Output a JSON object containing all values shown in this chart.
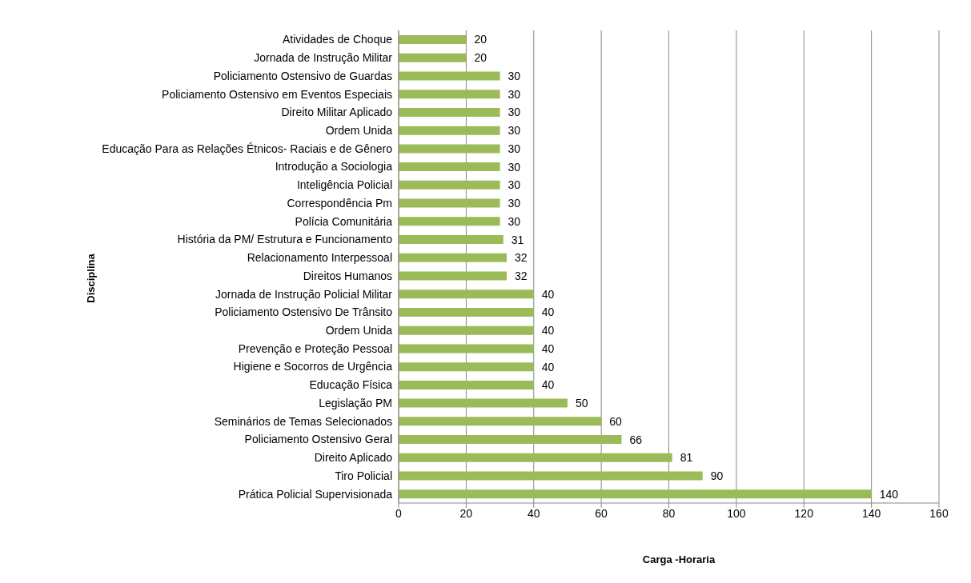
{
  "chart_data": {
    "type": "bar",
    "orientation": "horizontal",
    "xlabel": "Carga -Horaria",
    "ylabel": "Disciplina",
    "categories": [
      "Atividades de Choque",
      "Jornada de Instrução Militar",
      "Policiamento Ostensivo de Guardas",
      "Policiamento Ostensivo em Eventos Especiais",
      "Direito Militar Aplicado",
      "Ordem Unida",
      "Educação Para as Relações Étnicos- Raciais e de Gênero",
      "Introdução a Sociologia",
      "Inteligência Policial",
      "Correspondência Pm",
      "Polícia Comunitária",
      "História da PM/ Estrutura e Funcionamento",
      "Relacionamento Interpessoal",
      "Direitos Humanos",
      "Jornada de Instrução Policial Militar",
      "Policiamento Ostensivo De Trânsito",
      "Ordem Unida",
      "Prevenção e Proteção Pessoal",
      "Higiene e Socorros de Urgência",
      "Educação Física",
      "Legislação PM",
      "Seminários de Temas Selecionados",
      "Policiamento Ostensivo Geral",
      "Direito Aplicado",
      "Tiro Policial",
      "Prática Policial Supervisionada"
    ],
    "values": [
      20,
      20,
      30,
      30,
      30,
      30,
      30,
      30,
      30,
      30,
      30,
      31,
      32,
      32,
      40,
      40,
      40,
      40,
      40,
      40,
      50,
      60,
      66,
      81,
      90,
      140
    ],
    "color": "#9bbb59",
    "data_labels": true,
    "xlim": [
      0,
      160
    ],
    "xticks": [
      0,
      20,
      40,
      60,
      80,
      100,
      120,
      140,
      160
    ],
    "grid": "x"
  }
}
